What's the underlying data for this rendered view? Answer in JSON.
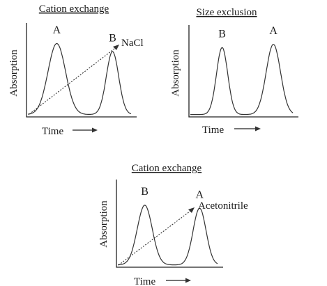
{
  "chart_data": [
    {
      "type": "line",
      "title": "Cation exchange",
      "xlabel": "Time",
      "ylabel": "Absorption",
      "peaks": [
        {
          "label": "A",
          "position": 0.28,
          "height": 0.88,
          "width": 0.085
        },
        {
          "label": "B",
          "position": 0.82,
          "height": 0.78,
          "width": 0.06
        }
      ],
      "gradient_label": "NaCl"
    },
    {
      "type": "line",
      "title": "Size exclusion",
      "xlabel": "Time",
      "ylabel": "Absorption",
      "peaks": [
        {
          "label": "B",
          "position": 0.31,
          "height": 0.83,
          "width": 0.055
        },
        {
          "label": "A",
          "position": 0.81,
          "height": 0.87,
          "width": 0.07
        }
      ]
    },
    {
      "type": "line",
      "title": "Cation exchange",
      "xlabel": "Time",
      "ylabel": "Absorption",
      "peaks": [
        {
          "label": "B",
          "position": 0.27,
          "height": 0.78,
          "width": 0.075
        },
        {
          "label": "A",
          "position": 0.82,
          "height": 0.74,
          "width": 0.065
        }
      ],
      "gradient_label": "Acetonitrile"
    }
  ]
}
